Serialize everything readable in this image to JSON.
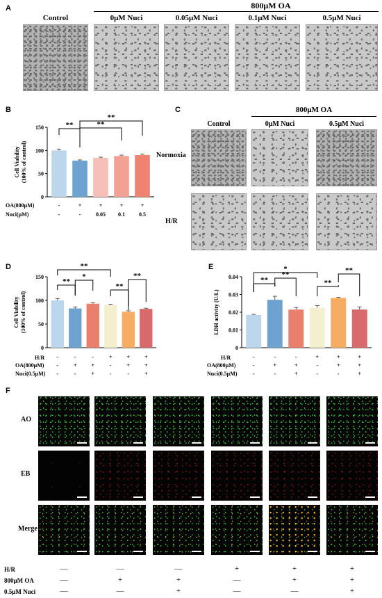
{
  "panelA": {
    "label": "A",
    "group_title": "800μM OA",
    "headers": [
      "Control",
      "0μM Nuci",
      "0.05μM Nuci",
      "0.1μM Nuci",
      "0.5μM Nuci"
    ]
  },
  "panelB": {
    "label": "B",
    "row_labels": [
      "OA(800μM)",
      "Nuci(μM)"
    ],
    "rows": [
      [
        "-",
        "+",
        "+",
        "+",
        "+"
      ],
      [
        "-",
        "-",
        "0.05",
        "0.1",
        "0.5"
      ]
    ],
    "sig": [
      "**",
      "**",
      "**"
    ]
  },
  "panelC": {
    "label": "C",
    "group_title": "800μM OA",
    "headers": [
      "Control",
      "0μM Nuci",
      "0.5μM Nuci"
    ],
    "row_labels": [
      "Normoxia",
      "H/R"
    ]
  },
  "panelD": {
    "label": "D",
    "row_labels": [
      "H/R",
      "OA(800μM)",
      "Nuci(0.5μM)"
    ],
    "rows": [
      [
        "-",
        "-",
        "-",
        "+",
        "+",
        "+"
      ],
      [
        "-",
        "+",
        "+",
        "-",
        "+",
        "+"
      ],
      [
        "-",
        "-",
        "+",
        "-",
        "-",
        "+"
      ]
    ],
    "sig": [
      "**",
      "**",
      "*",
      "**",
      "**"
    ]
  },
  "panelE": {
    "label": "E",
    "row_labels": [
      "H/R",
      "OA(800μM)",
      "Nuci(0.5μM)"
    ],
    "rows": [
      [
        "-",
        "-",
        "-",
        "+",
        "+",
        "+"
      ],
      [
        "-",
        "+",
        "+",
        "-",
        "+",
        "+"
      ],
      [
        "-",
        "-",
        "+",
        "-",
        "-",
        "+"
      ]
    ],
    "sig": [
      "*",
      "**",
      "**",
      "**",
      "**"
    ]
  },
  "panelF": {
    "label": "F",
    "row_labels": [
      "AO",
      "EB",
      "Merge"
    ],
    "cond_labels": [
      "H/R",
      "800μM OA",
      "0.5μM Nuci"
    ],
    "cond_rows": [
      [
        "—",
        "—",
        "—",
        "+",
        "+",
        "+"
      ],
      [
        "—",
        "+",
        "+",
        "—",
        "+",
        "+"
      ],
      [
        "—",
        "—",
        "+",
        "—",
        "—",
        "+"
      ]
    ]
  },
  "chart_data": [
    {
      "type": "bar",
      "panel": "B",
      "ylabel": "Cell Viability\n(100% of control)",
      "ylim": [
        0,
        150
      ],
      "yticks": [
        0,
        50,
        100,
        150
      ],
      "values": [
        100,
        78,
        84,
        88,
        90
      ],
      "errors": [
        3,
        1.5,
        1.5,
        2,
        2
      ],
      "colors": [
        "#bcd6ec",
        "#6fa3cf",
        "#f7c0b6",
        "#f2a294",
        "#ee8374"
      ]
    },
    {
      "type": "bar",
      "panel": "D",
      "ylabel": "Cell Viability\n(100% of control)",
      "ylim": [
        0,
        150
      ],
      "yticks": [
        0,
        50,
        100,
        150
      ],
      "values": [
        100,
        83,
        93,
        90,
        76,
        82
      ],
      "errors": [
        4,
        3,
        2,
        2,
        2,
        1.5
      ],
      "colors": [
        "#bcd6ec",
        "#6fa3cf",
        "#e9806e",
        "#f4efcf",
        "#f6ac62",
        "#d86a6e"
      ]
    },
    {
      "type": "bar",
      "panel": "E",
      "ylabel": "LDH activity (U/L)",
      "ylim": [
        0,
        0.04
      ],
      "yticks": [
        0,
        0.01,
        0.02,
        0.03,
        0.04
      ],
      "values": [
        0.0185,
        0.027,
        0.0215,
        0.0225,
        0.028,
        0.0215
      ],
      "errors": [
        0.0003,
        0.002,
        0.0012,
        0.0012,
        0.0004,
        0.0015
      ],
      "colors": [
        "#bcd6ec",
        "#6fa3cf",
        "#e9806e",
        "#f4efcf",
        "#f6ac62",
        "#d86a6e"
      ]
    }
  ]
}
